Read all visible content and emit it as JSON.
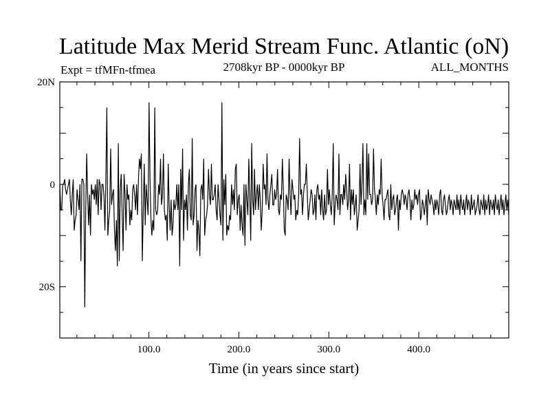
{
  "chart_data": {
    "type": "line",
    "title": "Latitude Max Merid Stream Func. Atlantic (oN)",
    "subtitle_left": "Expt = tfMFn-tfmea",
    "subtitle_center": "2708kyr BP - 0000kyr BP",
    "subtitle_right": "ALL_MONTHS",
    "xlabel": "Time (in years since start)",
    "ylabel": "",
    "xlim": [
      1,
      500
    ],
    "ylim": [
      -30,
      20
    ],
    "xticks": [
      {
        "value": 100,
        "label": "100.0"
      },
      {
        "value": 200,
        "label": "200.0"
      },
      {
        "value": 300,
        "label": "300.0"
      },
      {
        "value": 400,
        "label": "400.0"
      }
    ],
    "yticks": [
      {
        "value": 20,
        "label": "20N"
      },
      {
        "value": 0,
        "label": "0"
      },
      {
        "value": -20,
        "label": "20S"
      }
    ],
    "series": [
      {
        "name": "latitude",
        "values": [
          0,
          -5,
          -5,
          0,
          0,
          1,
          -1,
          -2,
          -1,
          0,
          1,
          -3,
          -6,
          -2,
          1,
          -9,
          -7,
          -6,
          -1,
          -3,
          -5,
          0,
          -15,
          1,
          1,
          0,
          -24,
          -5,
          6,
          -2,
          -8,
          -2,
          -10,
          0,
          -2,
          -1,
          -3,
          0,
          -4,
          1,
          -6,
          1,
          0,
          -5,
          0,
          0,
          -2,
          -9,
          1,
          15,
          -10,
          -7,
          -5,
          7,
          -4,
          -2,
          -1,
          -9,
          -13,
          -7,
          -16,
          8,
          -15,
          -1,
          2,
          -6,
          -13,
          2,
          -2,
          -9,
          0,
          -3,
          -2,
          -8,
          -5,
          -7,
          -1,
          0,
          -2,
          -5,
          0,
          -6,
          1,
          5,
          3,
          6,
          -15,
          -5,
          4,
          -8,
          0,
          -3,
          -6,
          16,
          1,
          -7,
          -10,
          -7,
          -9,
          15,
          -5,
          -6,
          -5,
          0,
          -2,
          5,
          -4,
          -2,
          6,
          -5,
          -7,
          -6,
          -11,
          4,
          -4,
          -9,
          -3,
          -10,
          -8,
          -3,
          -5,
          -4,
          0,
          -5,
          0,
          -16,
          3,
          -5,
          7,
          -11,
          -3,
          -5,
          -2,
          -9,
          0,
          3,
          -6,
          -7,
          9,
          -8,
          -6,
          -1,
          0,
          -13,
          -7,
          -9,
          -14,
          -1,
          0,
          -3,
          5,
          -10,
          -7,
          -6,
          -4,
          3,
          -2,
          -4,
          4,
          -3,
          -3,
          -2,
          0,
          -5,
          -7,
          0,
          -3,
          -6,
          -8,
          16,
          -11,
          1,
          -4,
          2,
          -10,
          -8,
          -9,
          -6,
          -7,
          0,
          -4,
          -1,
          -5,
          3,
          4,
          -6,
          -3,
          -2,
          -9,
          -4,
          -8,
          -10,
          0,
          -12,
          0,
          -3,
          -6,
          5,
          -2,
          -11,
          8,
          -3,
          -6,
          3,
          -5,
          -2,
          0,
          -5,
          0,
          -3,
          -9,
          -5,
          4,
          -1,
          0,
          -4,
          6,
          -3,
          -5,
          -2,
          0,
          2,
          -4,
          -4,
          -1,
          -3,
          -2,
          3,
          -5,
          -6,
          -2,
          -3,
          5,
          -1,
          -9,
          -10,
          -2,
          -3,
          -5,
          5,
          -2,
          -6,
          1,
          -1,
          -3,
          -2,
          -7,
          -5,
          -6,
          -2,
          9,
          -2,
          -1,
          -6,
          -2,
          0,
          0,
          4,
          -2,
          -7,
          -5,
          -3,
          -1,
          -2,
          -6,
          -5,
          -2,
          -7,
          -1,
          0,
          -3,
          -2,
          -6,
          -1,
          -5,
          -7,
          -2,
          -6,
          -5,
          3,
          -4,
          -1,
          -4,
          -6,
          -2,
          8,
          -8,
          -4,
          -2,
          -3,
          -5,
          6,
          -6,
          -2,
          -2,
          -4,
          0,
          -3,
          2,
          -1,
          -5,
          -3,
          4,
          -7,
          -1,
          -4,
          -1,
          -6,
          -4,
          -2,
          -9,
          -7,
          -5,
          4,
          -4,
          0,
          8,
          -6,
          -3,
          -6,
          8,
          -3,
          6,
          -2,
          -2,
          -4,
          -3,
          7,
          -1,
          -3,
          -6,
          -2,
          -4,
          -1,
          -2,
          5,
          -2,
          -4,
          -7,
          -3,
          -3,
          -2,
          -1,
          -6,
          -7,
          0,
          -5,
          -3,
          -2,
          -6,
          -5,
          -3,
          -2,
          -9,
          -3,
          -5,
          -2,
          -1,
          -2,
          -4,
          -2,
          -3,
          -5,
          -2,
          -1,
          -3,
          -7,
          -3,
          -5,
          -4,
          -1,
          -3,
          -2,
          -4,
          -2,
          -1,
          -7,
          -6,
          -3,
          -4,
          -6,
          -4,
          -2,
          -8,
          -1,
          -3,
          -4,
          -2,
          -3,
          -4,
          -6,
          -3,
          -5,
          -3,
          -4,
          -6,
          -2,
          -1,
          -5,
          -6,
          -3,
          -2,
          -4,
          -6,
          -5,
          -3,
          -2,
          -5,
          -3,
          -4,
          -6,
          -3,
          -4,
          -5,
          -2,
          -5,
          -3,
          -6,
          -2,
          -4,
          -5,
          -3,
          -6,
          -4,
          -2,
          -5,
          -3,
          -4,
          -6,
          -2,
          -5,
          -4,
          -3,
          -6,
          -5,
          -4,
          -2,
          -5,
          -6,
          -3,
          -4,
          -5,
          -2,
          -6,
          -3,
          -5,
          -4,
          -2,
          -6,
          -3,
          -4,
          -5,
          -3,
          -6,
          -2,
          -4,
          -5,
          -3,
          -6,
          -4,
          -2,
          -5,
          -3,
          -6,
          -4,
          -2,
          -5,
          -3,
          -6
        ]
      }
    ]
  }
}
